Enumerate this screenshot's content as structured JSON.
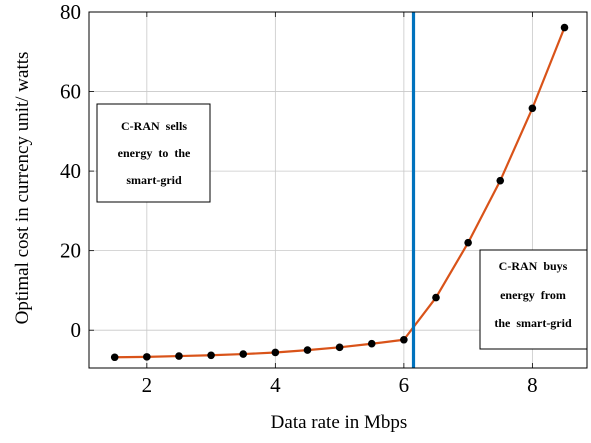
{
  "chart_data": {
    "type": "line",
    "xlabel": "Data rate in Mbps",
    "ylabel": "Optimal cost in currency unit/ watts",
    "xlim": [
      1.1,
      8.85
    ],
    "ylim": [
      -9.5,
      80
    ],
    "xticks": [
      2,
      4,
      6,
      8
    ],
    "yticks": [
      0,
      20,
      40,
      60,
      80
    ],
    "grid": true,
    "series": [
      {
        "x": [
          1.5,
          2.0,
          2.5,
          3.0,
          3.5,
          4.0,
          4.5,
          5.0,
          5.5,
          6.0,
          6.5,
          7.0,
          7.5,
          8.0,
          8.5
        ],
        "y": [
          -6.8,
          -6.7,
          -6.5,
          -6.3,
          -6.0,
          -5.6,
          -5.0,
          -4.3,
          -3.4,
          -2.4,
          8.2,
          22.0,
          37.6,
          55.8,
          76.1
        ],
        "color": "#d95319",
        "marker_color": "#000000"
      }
    ],
    "vline": {
      "x": 6.15,
      "color": "#0072bd"
    },
    "annotations": [
      {
        "position": "left",
        "lines": [
          "C-RAN  sells",
          "energy  to  the",
          "smart-grid"
        ]
      },
      {
        "position": "bottom-right",
        "lines": [
          "C-RAN  buys",
          "energy  from",
          "the  smart-grid"
        ]
      }
    ]
  }
}
